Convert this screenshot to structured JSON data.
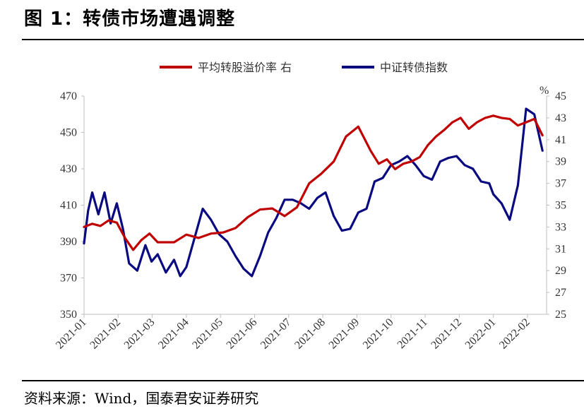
{
  "figure": {
    "title": "图 1：转债市场遭遇调整",
    "source": "资料来源：Wind，国泰君安证券研究"
  },
  "colors": {
    "premium": "#c00000",
    "index": "#0a0a80"
  },
  "chart_data": {
    "type": "line",
    "title": "",
    "xlabel": "",
    "ylabel_left": "",
    "ylabel_right": "%",
    "x_ticks": [
      "2021-01",
      "2021-02",
      "2021-03",
      "2021-04",
      "2021-05",
      "2021-06",
      "2021-07",
      "2021-08",
      "2021-09",
      "2021-10",
      "2021-11",
      "2021-12",
      "2022-01",
      "2022-02"
    ],
    "y_left": {
      "range": [
        350,
        470
      ],
      "ticks": [
        "350",
        "370",
        "390",
        "410",
        "430",
        "450",
        "470"
      ]
    },
    "y_right": {
      "range": [
        25,
        45
      ],
      "ticks": [
        "25",
        "27",
        "29",
        "31",
        "33",
        "35",
        "37",
        "39",
        "41",
        "43",
        "45"
      ]
    },
    "grid": false,
    "legend_position": "top",
    "series": [
      {
        "name": "平均转股溢价率 右",
        "axis": "right",
        "x": [
          2021.0,
          2021.02,
          2021.04,
          2021.06,
          2021.08,
          2021.1,
          2021.12,
          2021.14,
          2021.16,
          2021.18,
          2021.2,
          2021.22,
          2021.25,
          2021.28,
          2021.31,
          2021.34,
          2021.37,
          2021.4,
          2021.43,
          2021.46,
          2021.49,
          2021.52,
          2021.55,
          2021.58,
          2021.61,
          2021.64,
          2021.67,
          2021.7,
          2021.72,
          2021.74,
          2021.76,
          2021.78,
          2021.8,
          2021.82,
          2021.84,
          2021.86,
          2021.88,
          2021.9,
          2021.92,
          2021.94,
          2021.96,
          2021.98,
          2022.0,
          2022.02,
          2022.04,
          2022.06,
          2022.08,
          2022.1,
          2022.12
        ],
        "values": [
          33.0,
          33.3,
          33.1,
          33.6,
          33.4,
          32.0,
          30.9,
          31.8,
          32.4,
          31.6,
          31.6,
          31.6,
          32.3,
          32.0,
          32.4,
          32.5,
          32.9,
          33.9,
          34.6,
          34.7,
          34.0,
          34.8,
          37.0,
          37.9,
          39.0,
          41.3,
          42.2,
          40.0,
          38.8,
          39.2,
          38.3,
          38.8,
          39.0,
          39.4,
          40.5,
          41.3,
          41.9,
          42.6,
          43.0,
          42.0,
          42.6,
          43.0,
          43.2,
          43.0,
          42.9,
          42.3,
          42.6,
          42.9,
          41.4
        ]
      },
      {
        "name": "中证转债指数",
        "axis": "left",
        "x": [
          2021.0,
          2021.01,
          2021.02,
          2021.035,
          2021.05,
          2021.065,
          2021.08,
          2021.095,
          2021.11,
          2021.13,
          2021.15,
          2021.165,
          2021.18,
          2021.2,
          2021.22,
          2021.235,
          2021.25,
          2021.27,
          2021.29,
          2021.31,
          2021.33,
          2021.35,
          2021.37,
          2021.39,
          2021.41,
          2021.43,
          2021.45,
          2021.47,
          2021.49,
          2021.51,
          2021.53,
          2021.55,
          2021.57,
          2021.59,
          2021.61,
          2021.63,
          2021.65,
          2021.67,
          2021.69,
          2021.71,
          2021.73,
          2021.75,
          2021.77,
          2021.79,
          2021.81,
          2021.83,
          2021.85,
          2021.87,
          2021.89,
          2021.91,
          2021.93,
          2021.95,
          2021.97,
          2021.99,
          2022.0,
          2022.02,
          2022.04,
          2022.06,
          2022.08,
          2022.1,
          2022.12
        ],
        "values": [
          389,
          407,
          417,
          405,
          417,
          400,
          411,
          397,
          378,
          374,
          388,
          379,
          383,
          373,
          380,
          371,
          376,
          392,
          408,
          402,
          394,
          390,
          382,
          375,
          371,
          382,
          395,
          403,
          413,
          413,
          411,
          408,
          414,
          417,
          404,
          396,
          397,
          406,
          408,
          423,
          425,
          432,
          434,
          437,
          432,
          426,
          424,
          434,
          436,
          437,
          432,
          430,
          423,
          422,
          416,
          411,
          402,
          421,
          463,
          460,
          440
        ]
      }
    ]
  }
}
